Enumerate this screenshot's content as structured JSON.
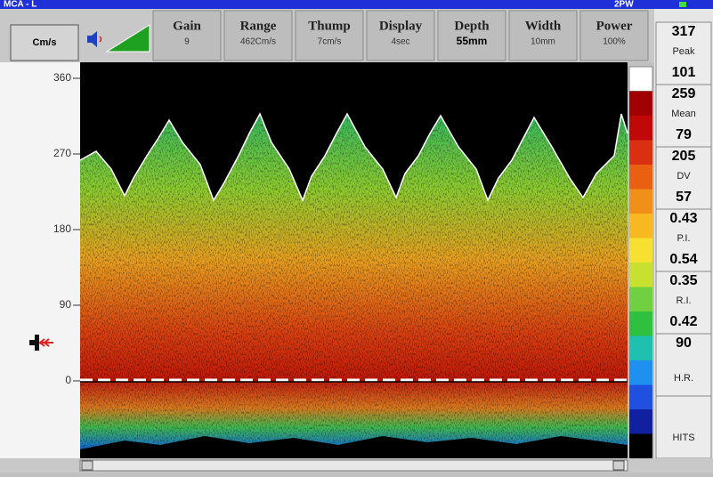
{
  "window": {
    "title": "MCA - L",
    "mode": "2PW"
  },
  "toolbar": {
    "unit_button": "Cm/s",
    "params": [
      {
        "label": "Gain",
        "value": "9"
      },
      {
        "label": "Range",
        "value": "462Cm/s"
      },
      {
        "label": "Thump",
        "value": "7cm/s"
      },
      {
        "label": "Display",
        "value": "4sec"
      },
      {
        "label": "Depth",
        "value": "55mm"
      },
      {
        "label": "Width",
        "value": "10mm"
      },
      {
        "label": "Power",
        "value": "100%"
      }
    ]
  },
  "scale": {
    "ticks": [
      "360",
      "270",
      "180",
      "90",
      "0"
    ]
  },
  "measurements": [
    {
      "top": "317",
      "label": "Peak",
      "bottom": "101"
    },
    {
      "top": "259",
      "label": "Mean",
      "bottom": "79"
    },
    {
      "top": "205",
      "label": "DV",
      "bottom": "57"
    },
    {
      "top": "0.43",
      "label": "P.I.",
      "bottom": "0.54"
    },
    {
      "top": "0.35",
      "label": "R.I.",
      "bottom": "0.42"
    },
    {
      "top": "90",
      "label": "H.R."
    },
    {
      "label": "HITS"
    }
  ]
}
